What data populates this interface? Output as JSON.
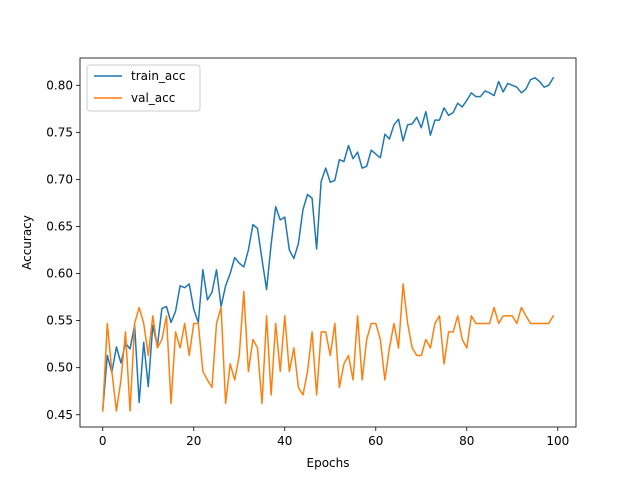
{
  "chart_data": {
    "type": "line",
    "title": "",
    "xlabel": "Epochs",
    "ylabel": "Accuracy",
    "xlim": [
      -5,
      104
    ],
    "ylim": [
      0.437,
      0.829
    ],
    "xticks": [
      0,
      20,
      40,
      60,
      80,
      100
    ],
    "yticks": [
      0.45,
      0.5,
      0.55,
      0.6,
      0.65,
      0.7,
      0.75,
      0.8
    ],
    "ytick_labels": [
      "0.45",
      "0.50",
      "0.55",
      "0.60",
      "0.65",
      "0.70",
      "0.75",
      "0.80"
    ],
    "grid": false,
    "legend_position": "top-left",
    "series": [
      {
        "name": "train_acc",
        "color": "#1f77b4",
        "values": [
          0.455,
          0.513,
          0.495,
          0.522,
          0.505,
          0.526,
          0.52,
          0.545,
          0.463,
          0.527,
          0.48,
          0.545,
          0.523,
          0.563,
          0.565,
          0.548,
          0.56,
          0.587,
          0.585,
          0.589,
          0.562,
          0.548,
          0.604,
          0.572,
          0.58,
          0.604,
          0.565,
          0.587,
          0.6,
          0.617,
          0.611,
          0.607,
          0.625,
          0.652,
          0.648,
          0.615,
          0.583,
          0.631,
          0.671,
          0.657,
          0.66,
          0.625,
          0.616,
          0.632,
          0.668,
          0.684,
          0.68,
          0.626,
          0.698,
          0.712,
          0.697,
          0.699,
          0.721,
          0.719,
          0.736,
          0.722,
          0.729,
          0.712,
          0.714,
          0.731,
          0.727,
          0.723,
          0.748,
          0.743,
          0.758,
          0.764,
          0.741,
          0.758,
          0.759,
          0.766,
          0.755,
          0.772,
          0.747,
          0.763,
          0.763,
          0.776,
          0.768,
          0.771,
          0.781,
          0.777,
          0.784,
          0.792,
          0.788,
          0.788,
          0.794,
          0.792,
          0.789,
          0.804,
          0.793,
          0.802,
          0.8,
          0.798,
          0.792,
          0.796,
          0.806,
          0.808,
          0.804,
          0.798,
          0.8,
          0.808
        ]
      },
      {
        "name": "val_acc",
        "color": "#ff7f0e",
        "values": [
          0.454,
          0.547,
          0.496,
          0.454,
          0.487,
          0.538,
          0.454,
          0.547,
          0.564,
          0.547,
          0.513,
          0.555,
          0.521,
          0.53,
          0.555,
          0.462,
          0.538,
          0.521,
          0.547,
          0.513,
          0.547,
          0.547,
          0.496,
          0.487,
          0.479,
          0.547,
          0.564,
          0.462,
          0.504,
          0.487,
          0.513,
          0.581,
          0.496,
          0.53,
          0.521,
          0.462,
          0.555,
          0.471,
          0.547,
          0.496,
          0.555,
          0.496,
          0.521,
          0.479,
          0.471,
          0.496,
          0.538,
          0.471,
          0.538,
          0.538,
          0.513,
          0.547,
          0.479,
          0.504,
          0.513,
          0.487,
          0.555,
          0.487,
          0.53,
          0.547,
          0.547,
          0.53,
          0.487,
          0.521,
          0.547,
          0.521,
          0.589,
          0.547,
          0.521,
          0.513,
          0.513,
          0.53,
          0.521,
          0.547,
          0.555,
          0.504,
          0.538,
          0.538,
          0.555,
          0.53,
          0.521,
          0.555,
          0.547,
          0.547,
          0.547,
          0.547,
          0.564,
          0.547,
          0.555,
          0.555,
          0.555,
          0.547,
          0.564,
          0.555,
          0.547,
          0.547,
          0.547,
          0.547,
          0.547,
          0.555
        ]
      }
    ]
  }
}
